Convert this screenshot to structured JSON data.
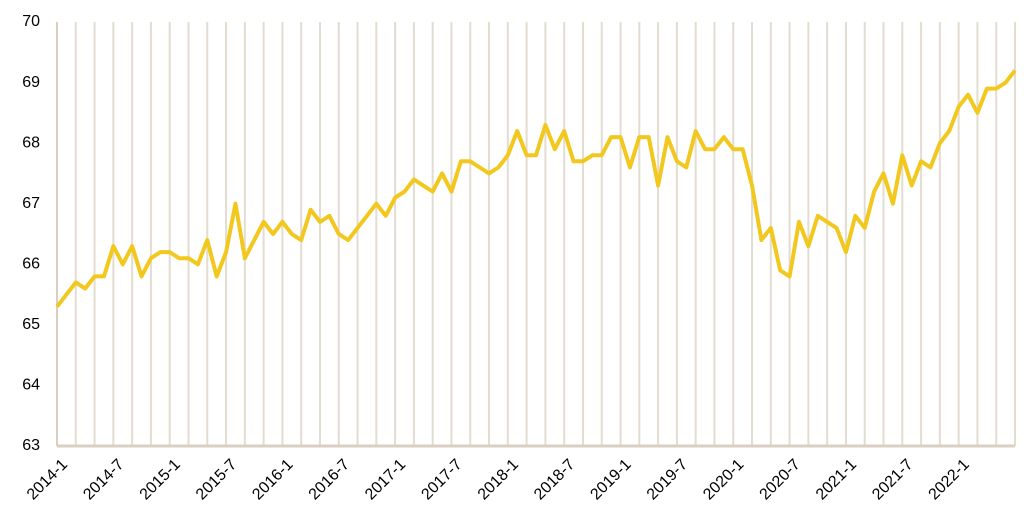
{
  "chart_data": {
    "type": "line",
    "categories": [
      "2014-1",
      null,
      null,
      null,
      null,
      null,
      "2014-7",
      null,
      null,
      null,
      null,
      null,
      "2015-1",
      null,
      null,
      null,
      null,
      null,
      "2015-7",
      null,
      null,
      null,
      null,
      null,
      "2016-1",
      null,
      null,
      null,
      null,
      null,
      "2016-7",
      null,
      null,
      null,
      null,
      null,
      "2017-1",
      null,
      null,
      null,
      null,
      null,
      "2017-7",
      null,
      null,
      null,
      null,
      null,
      "2018-1",
      null,
      null,
      null,
      null,
      null,
      "2018-7",
      null,
      null,
      null,
      null,
      null,
      "2019-1",
      null,
      null,
      null,
      null,
      null,
      "2019-7",
      null,
      null,
      null,
      null,
      null,
      "2020-1",
      null,
      null,
      null,
      null,
      null,
      "2020-7",
      null,
      null,
      null,
      null,
      null,
      "2021-1",
      null,
      null,
      null,
      null,
      null,
      "2021-7",
      null,
      null,
      null,
      null,
      null,
      "2022-1",
      null,
      null,
      null,
      null,
      null,
      null
    ],
    "values": [
      65.3,
      65.5,
      65.7,
      65.6,
      65.8,
      65.8,
      66.3,
      66.0,
      66.3,
      65.8,
      66.1,
      66.2,
      66.2,
      66.1,
      66.1,
      66.0,
      66.4,
      65.8,
      66.2,
      67.0,
      66.1,
      66.4,
      66.7,
      66.5,
      66.7,
      66.5,
      66.4,
      66.9,
      66.7,
      66.8,
      66.5,
      66.4,
      66.6,
      66.8,
      67.0,
      66.8,
      67.1,
      67.2,
      67.4,
      67.3,
      67.2,
      67.5,
      67.2,
      67.7,
      67.7,
      67.6,
      67.5,
      67.6,
      67.8,
      68.2,
      67.8,
      67.8,
      68.3,
      67.9,
      68.2,
      67.7,
      67.7,
      67.8,
      67.8,
      68.1,
      68.1,
      67.6,
      68.1,
      68.1,
      67.3,
      68.1,
      67.7,
      67.6,
      68.2,
      67.9,
      67.9,
      68.1,
      67.9,
      67.9,
      67.3,
      66.4,
      66.6,
      65.9,
      65.8,
      66.7,
      66.3,
      66.8,
      66.7,
      66.6,
      66.2,
      66.8,
      66.6,
      67.2,
      67.5,
      67.0,
      67.8,
      67.3,
      67.7,
      67.6,
      68.0,
      68.2,
      68.6,
      68.8,
      68.5,
      68.9,
      68.9,
      69.0,
      69.2
    ],
    "color": "#f2c81e",
    "ylim": [
      63,
      70
    ],
    "yticks": [
      63,
      64,
      65,
      66,
      67,
      68,
      69,
      70
    ]
  }
}
